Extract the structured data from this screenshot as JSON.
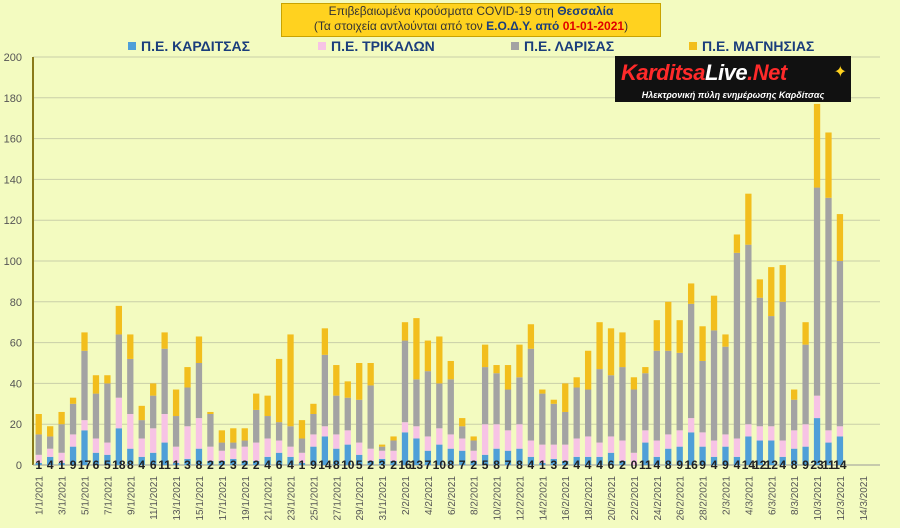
{
  "title": {
    "line1_prefix": "Επιβεβαιωμένα κρούσματα COVID-19 στη ",
    "line1_region": "Θεσσαλία",
    "line2_prefix": "(Τα στοιχεία αντλούνται από τον ",
    "line2_source": "Ε.Ο.Δ.Υ. από ",
    "line2_date": "01-01-2021",
    "line2_suffix": ")"
  },
  "logo": {
    "text_red": "Karditsa",
    "text_white": "Live",
    "text_dot": ".Net",
    "subtitle": "Ηλεκτρονική πύλη ενημέρωσης Καρδίτσας"
  },
  "colors": {
    "karditsa": "#4f9fd8",
    "trikala": "#f7c3e5",
    "larisa": "#a3a3a3",
    "magnisia": "#f2be1d",
    "grid": "#c9cfa8",
    "background": "#f3fbc0"
  },
  "chart_data": {
    "type": "bar",
    "stacked": true,
    "ylim": [
      0,
      200
    ],
    "yticks": [
      0,
      20,
      40,
      60,
      80,
      100,
      120,
      140,
      160,
      180,
      200
    ],
    "grid": true,
    "legend_position": "top",
    "series": [
      {
        "name": "Π.Ε. ΚΑΡΔΙΤΣΑΣ",
        "values": [
          1,
          4,
          1,
          9,
          17,
          6,
          5,
          18,
          8,
          4,
          6,
          11,
          1,
          3,
          8,
          2,
          2,
          3,
          2,
          2,
          4,
          6,
          4,
          1,
          9,
          14,
          8,
          10,
          5,
          2,
          3,
          2,
          16,
          13,
          7,
          10,
          8,
          7,
          2,
          5,
          8,
          7,
          8,
          4,
          1,
          3,
          2,
          4,
          4,
          4,
          6,
          2,
          0,
          11,
          4,
          8,
          9,
          16,
          9,
          4,
          9,
          4,
          14,
          12,
          12,
          4,
          8,
          9,
          23,
          11,
          14,
          0,
          0,
          0
        ]
      },
      {
        "name": "Π.Ε. ΤΡΙΚΑΛΩΝ",
        "values": [
          4,
          4,
          5,
          6,
          5,
          7,
          6,
          15,
          17,
          9,
          12,
          14,
          8,
          16,
          15,
          7,
          5,
          5,
          7,
          9,
          9,
          6,
          5,
          5,
          6,
          5,
          7,
          7,
          6,
          6,
          4,
          5,
          5,
          6,
          7,
          8,
          7,
          6,
          5,
          15,
          12,
          10,
          12,
          8,
          9,
          7,
          8,
          9,
          10,
          7,
          8,
          10,
          6,
          6,
          8,
          7,
          8,
          7,
          7,
          8,
          6,
          9,
          6,
          7,
          7,
          8,
          9,
          11,
          11,
          6,
          5,
          0,
          0,
          0
        ]
      },
      {
        "name": "Π.Ε. ΛΑΡΙΣΑΣ",
        "values": [
          10,
          6,
          14,
          15,
          34,
          22,
          29,
          31,
          27,
          9,
          16,
          32,
          15,
          19,
          27,
          16,
          4,
          3,
          3,
          16,
          11,
          9,
          10,
          7,
          10,
          35,
          19,
          16,
          21,
          31,
          2,
          5,
          40,
          23,
          32,
          22,
          27,
          6,
          5,
          28,
          25,
          20,
          23,
          45,
          25,
          20,
          16,
          25,
          23,
          36,
          30,
          36,
          31,
          28,
          44,
          41,
          38,
          56,
          35,
          54,
          43,
          91,
          88,
          63,
          54,
          68,
          15,
          39,
          102,
          114,
          81,
          0,
          0,
          0
        ]
      },
      {
        "name": "Π.Ε. ΜΑΓΝΗΣΙΑΣ",
        "values": [
          10,
          5,
          6,
          3,
          9,
          9,
          4,
          14,
          12,
          7,
          6,
          8,
          13,
          10,
          13,
          1,
          6,
          7,
          6,
          8,
          10,
          31,
          45,
          9,
          5,
          13,
          15,
          8,
          18,
          11,
          1,
          2,
          9,
          30,
          15,
          23,
          9,
          4,
          2,
          11,
          4,
          12,
          16,
          12,
          2,
          2,
          14,
          5,
          19,
          23,
          23,
          17,
          6,
          3,
          15,
          24,
          16,
          10,
          17,
          17,
          6,
          9,
          25,
          9,
          24,
          18,
          5,
          11,
          41,
          32,
          23,
          0,
          0,
          0
        ]
      }
    ],
    "value_labels_series": "Π.Ε. ΚΑΡΔΙΤΣΑΣ",
    "x_tick_labels": [
      "1/1/2021",
      "3/1/2021",
      "5/1/2021",
      "7/1/2021",
      "9/1/2021",
      "11/1/2021",
      "13/1/2021",
      "15/1/2021",
      "17/1/2021",
      "19/1/2021",
      "21/1/2021",
      "23/1/2021",
      "25/1/2021",
      "27/1/2021",
      "29/1/2021",
      "31/1/2021",
      "2/2/2021",
      "4/2/2021",
      "6/2/2021",
      "8/2/2021",
      "10/2/2021",
      "12/2/2021",
      "14/2/2021",
      "16/2/2021",
      "18/2/2021",
      "20/2/2021",
      "22/2/2021",
      "24/2/2021",
      "26/2/2021",
      "28/2/2021",
      "2/3/2021",
      "4/3/2021",
      "6/3/2021",
      "8/3/2021",
      "10/3/2021",
      "12/3/2021",
      "14/3/2021"
    ]
  }
}
